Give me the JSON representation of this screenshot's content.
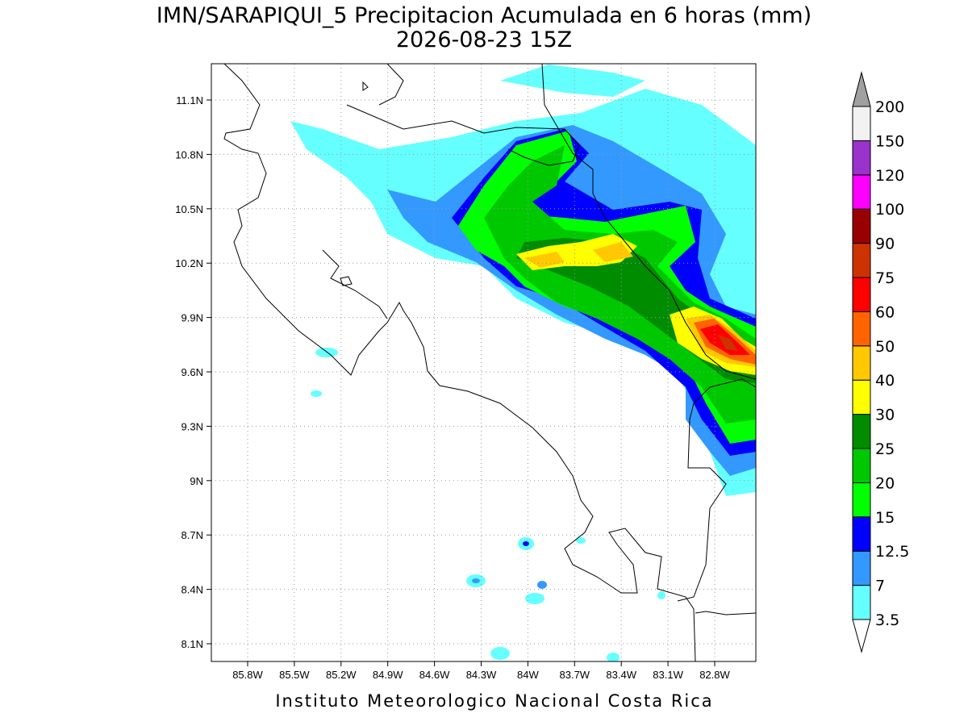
{
  "title": "IMN/SARAPIQUI_5 Precipitacion Acumulada en 6 horas (mm)",
  "subtitle": "2026-08-23 15Z",
  "lat_labels": [
    "11.1N",
    "10.8N",
    "10.5N",
    "10.2N",
    "9.9N",
    "9.6N",
    "9.3N",
    "9N",
    "8.7N",
    "8.4N",
    "8.1N"
  ],
  "lon_labels": [
    "85.8W",
    "85.5W",
    "85.2W",
    "84.9W",
    "84.6W",
    "84.3W",
    "84W",
    "83.7W",
    "83.4W",
    "83.1W",
    "82.8W"
  ],
  "colorbar": {
    "labels": [
      "3.5",
      "7",
      "12.5",
      "15",
      "20",
      "25",
      "30",
      "40",
      "50",
      "60",
      "75",
      "90",
      "100",
      "120",
      "150",
      "200"
    ],
    "colors": [
      "#66ffff",
      "#3399ff",
      "#0000ff",
      "#00ff00",
      "#00c800",
      "#008c00",
      "#ffff00",
      "#ffc800",
      "#ff6400",
      "#ff0000",
      "#cc3300",
      "#990000",
      "#ff00ff",
      "#9933cc",
      "#f2f2f2"
    ],
    "under_color": "#ffffff",
    "over_color": "#a0a0a0"
  },
  "footer": "Instituto Meteorologico Nacional Costa Rica"
}
